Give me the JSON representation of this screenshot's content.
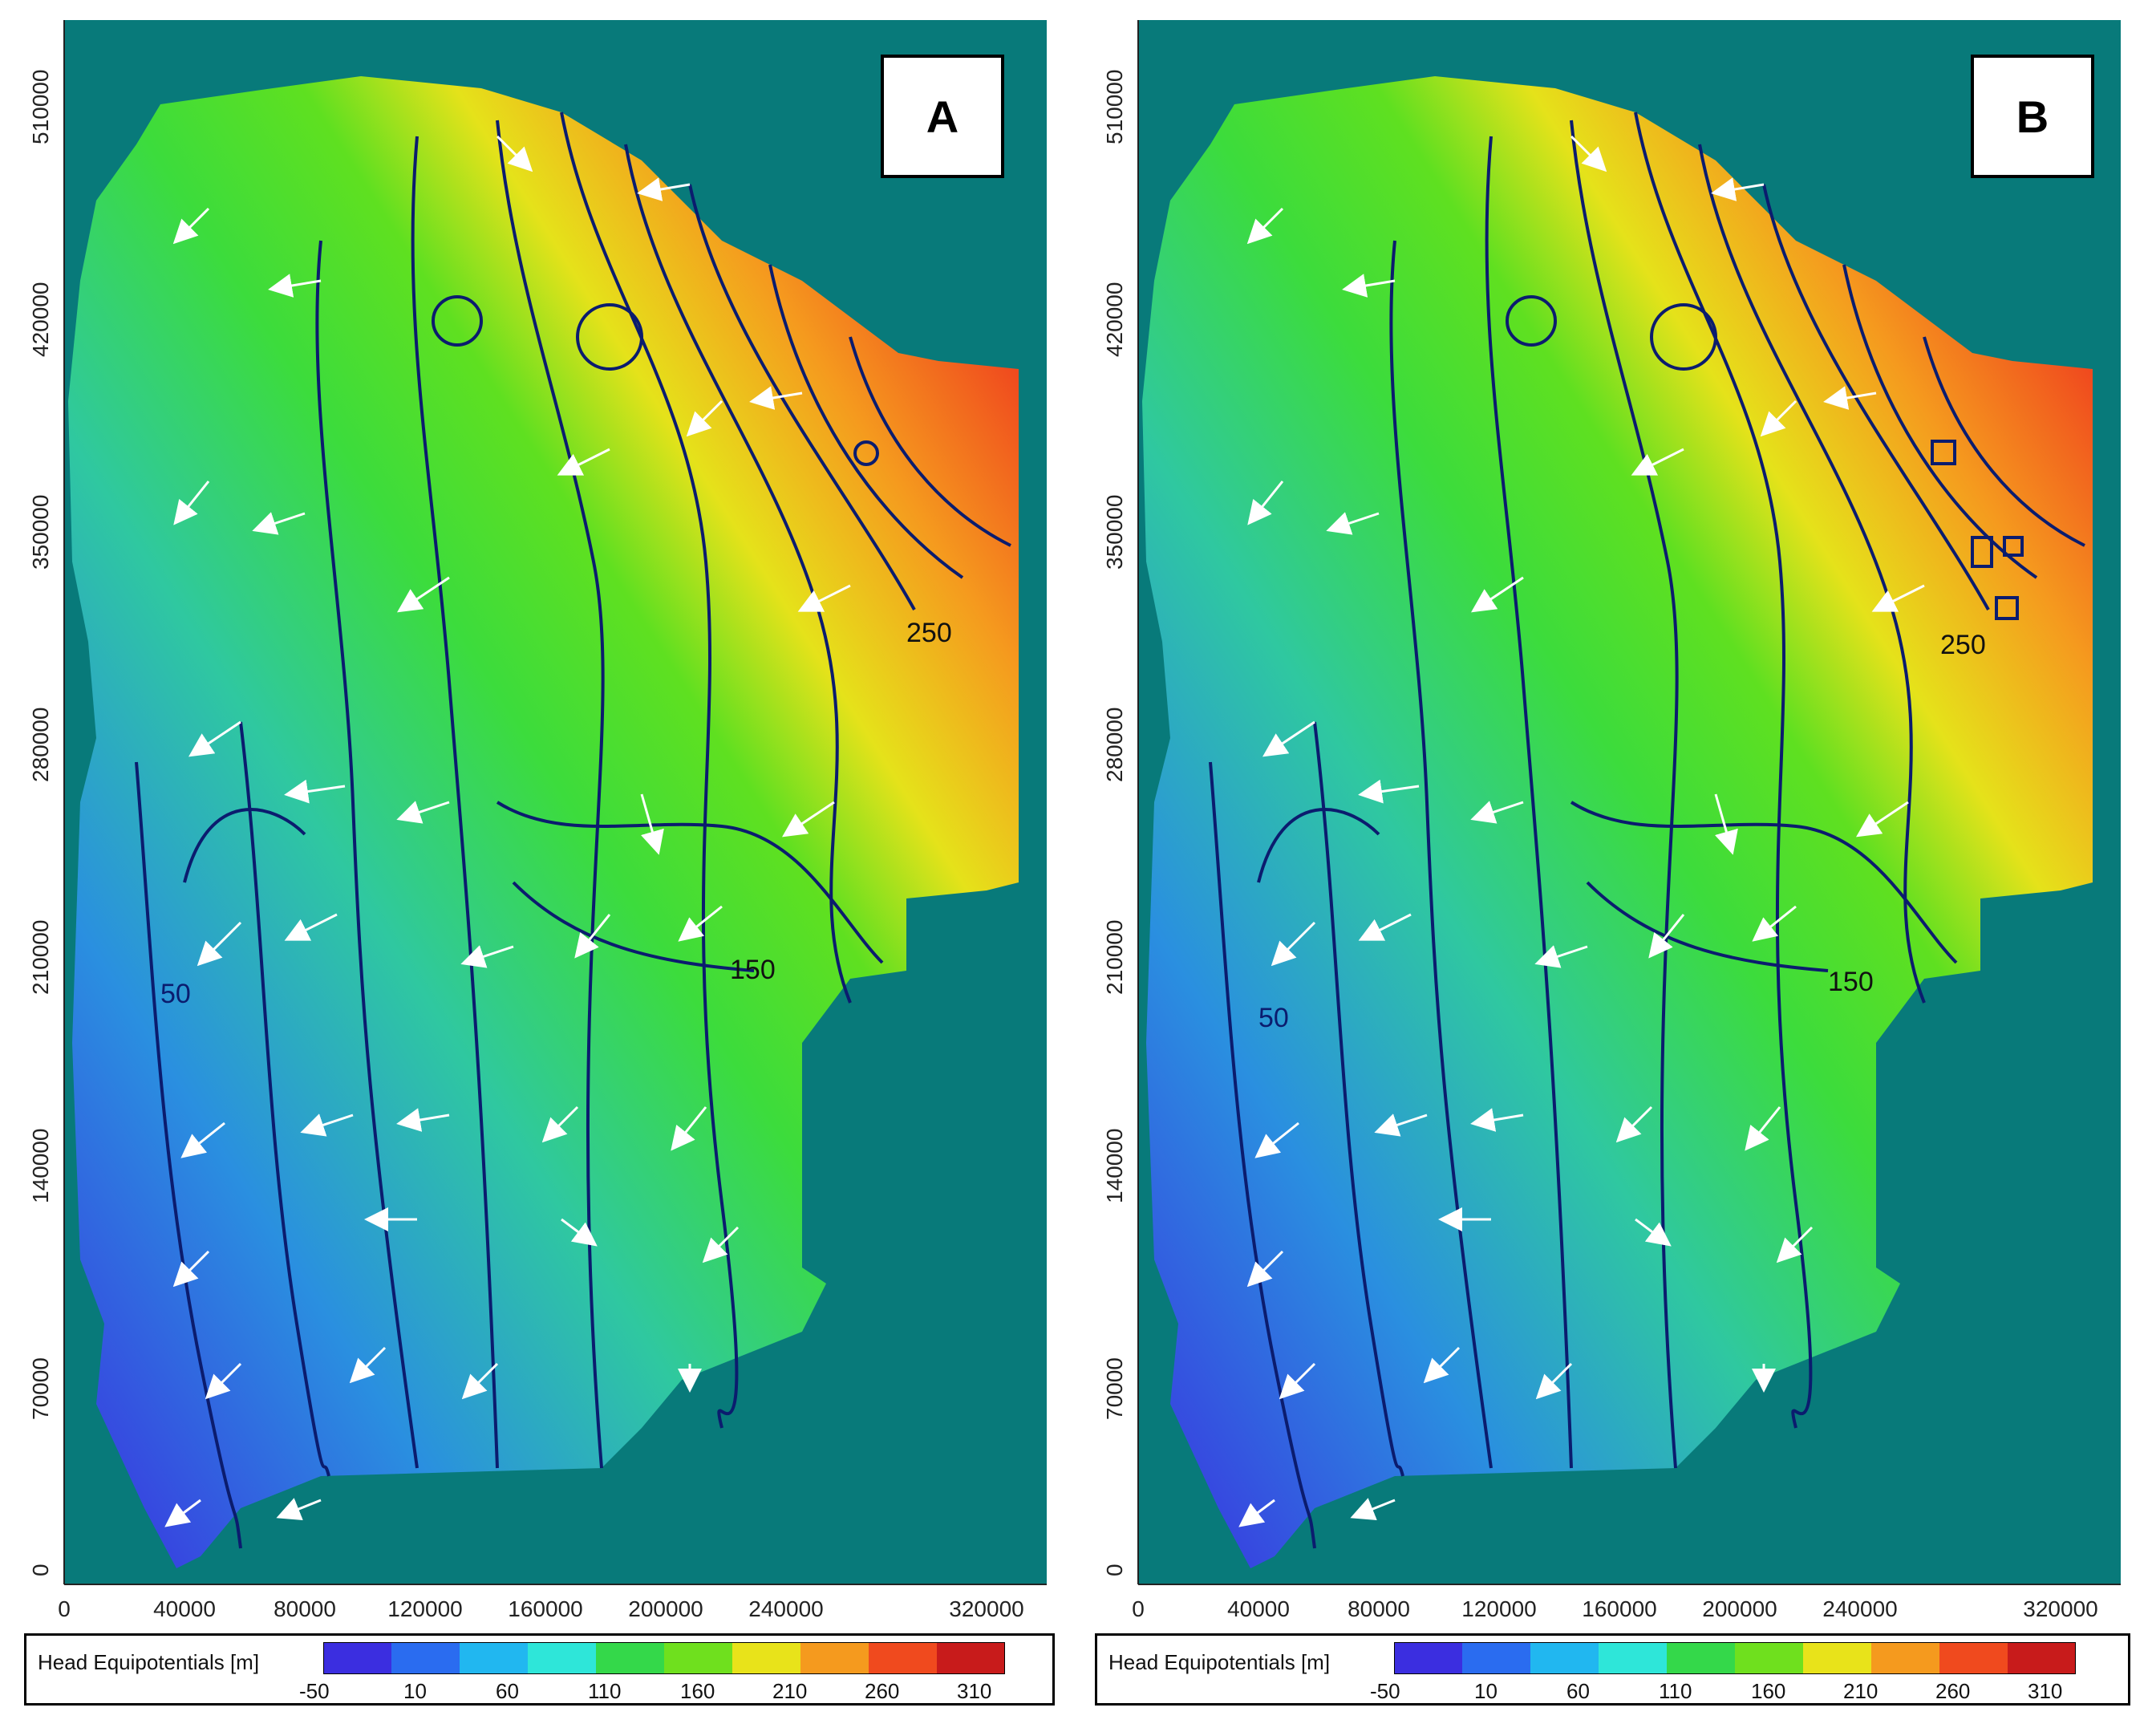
{
  "panels": [
    {
      "id": "A",
      "label": "A",
      "y_ticks": [
        "0",
        "70000",
        "140000",
        "210000",
        "280000",
        "350000",
        "420000",
        "510000"
      ],
      "x_ticks": [
        "0",
        "40000",
        "80000",
        "120000",
        "160000",
        "200000",
        "240000",
        "320000"
      ],
      "contour_labels": [
        "250",
        "150",
        "50"
      ],
      "legend_title": "Head Equipotentials [m]",
      "legend_ticks": [
        "-50",
        "10",
        "60",
        "110",
        "160",
        "210",
        "260",
        "310"
      ]
    },
    {
      "id": "B",
      "label": "B",
      "y_ticks": [
        "0",
        "70000",
        "140000",
        "210000",
        "280000",
        "350000",
        "420000",
        "510000"
      ],
      "x_ticks": [
        "0",
        "40000",
        "80000",
        "120000",
        "160000",
        "200000",
        "240000",
        "320000"
      ],
      "contour_labels": [
        "250",
        "150",
        "50"
      ],
      "legend_title": "Head Equipotentials [m]",
      "legend_ticks": [
        "-50",
        "10",
        "60",
        "110",
        "160",
        "210",
        "260",
        "310"
      ]
    }
  ],
  "colors": {
    "background": "#087a7a",
    "contour": "#0b1c6e",
    "arrow": "#ffffff",
    "scale": [
      "#3b2ee0",
      "#2a6cf0",
      "#21b7f0",
      "#2ee6d9",
      "#34d84a",
      "#6fe01e",
      "#e8e31a",
      "#f59a1e",
      "#f04a1e",
      "#c81b1b"
    ]
  }
}
